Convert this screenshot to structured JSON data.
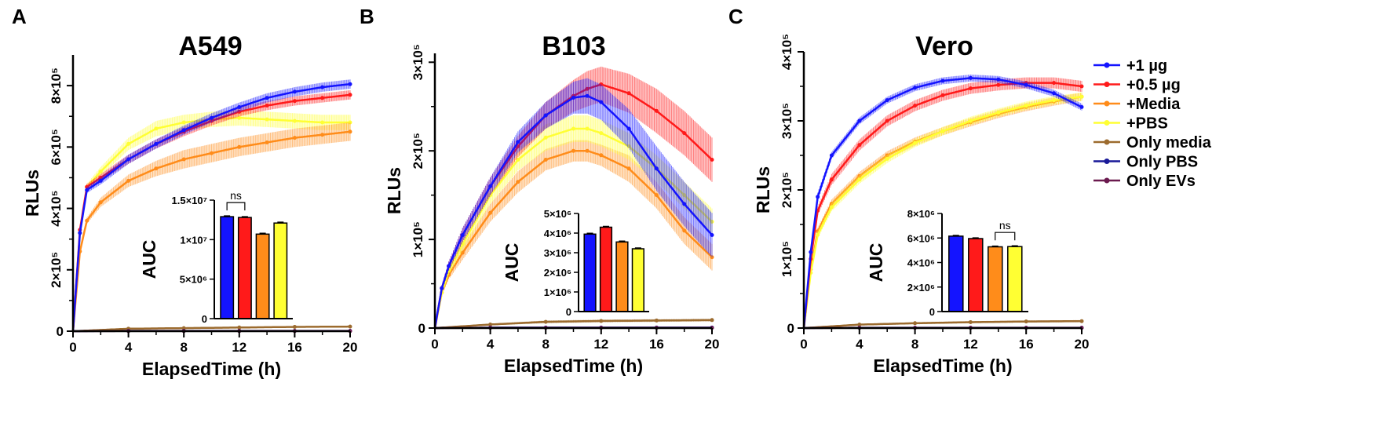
{
  "legend": {
    "position": "right",
    "items": [
      {
        "label": "+1 µg",
        "color": "#1414ff"
      },
      {
        "label": "+0.5 µg",
        "color": "#ff1a1a"
      },
      {
        "label": "+Media",
        "color": "#ff8c1a"
      },
      {
        "label": "+PBS",
        "color": "#ffff33"
      },
      {
        "label": "Only media",
        "color": "#9c6b2e"
      },
      {
        "label": "Only PBS",
        "color": "#1a1a99"
      },
      {
        "label": "Only EVs",
        "color": "#6b1a4f"
      }
    ]
  },
  "chart_data": [
    {
      "panel": "A",
      "type": "line",
      "title": "A549",
      "xlabel": "ElapsedTime (h)",
      "ylabel": "RLUs",
      "xlim": [
        0,
        20
      ],
      "ylim": [
        0,
        900000
      ],
      "xticks": [
        0,
        4,
        8,
        12,
        16,
        20
      ],
      "xtick_labels": [
        "0",
        "4",
        "8",
        "12",
        "16",
        "20"
      ],
      "yticks": [
        0,
        200000,
        400000,
        600000,
        800000
      ],
      "ytick_labels": [
        "0",
        "2×10⁵",
        "4×10⁵",
        "6×10⁵",
        "8×10⁵"
      ],
      "series": [
        {
          "name": "+PBS",
          "color": "#ffff33",
          "x": [
            0,
            0.5,
            1,
            2,
            4,
            6,
            8,
            10,
            12,
            14,
            16,
            18,
            20
          ],
          "y": [
            0,
            320000,
            470000,
            520000,
            610000,
            660000,
            680000,
            690000,
            695000,
            690000,
            685000,
            680000,
            680000
          ],
          "err": [
            0,
            5000,
            10000,
            15000,
            20000,
            25000,
            25000,
            25000,
            25000,
            25000,
            25000,
            25000,
            25000
          ]
        },
        {
          "name": "+Media",
          "color": "#ff8c1a",
          "x": [
            0,
            0.5,
            1,
            2,
            4,
            6,
            8,
            10,
            12,
            14,
            16,
            18,
            20
          ],
          "y": [
            0,
            260000,
            360000,
            420000,
            490000,
            530000,
            560000,
            580000,
            600000,
            615000,
            630000,
            640000,
            650000
          ],
          "err": [
            0,
            5000,
            10000,
            15000,
            20000,
            25000,
            30000,
            30000,
            30000,
            30000,
            30000,
            30000,
            30000
          ]
        },
        {
          "name": "+0.5 µg",
          "color": "#ff1a1a",
          "x": [
            0,
            0.5,
            1,
            2,
            4,
            6,
            8,
            10,
            12,
            14,
            16,
            18,
            20
          ],
          "y": [
            0,
            330000,
            470000,
            500000,
            560000,
            610000,
            650000,
            685000,
            715000,
            735000,
            750000,
            760000,
            770000
          ],
          "err": [
            0,
            5000,
            10000,
            12000,
            15000,
            15000,
            15000,
            15000,
            15000,
            15000,
            15000,
            15000,
            15000
          ]
        },
        {
          "name": "+1 µg",
          "color": "#1414ff",
          "x": [
            0,
            0.5,
            1,
            2,
            4,
            6,
            8,
            10,
            12,
            14,
            16,
            18,
            20
          ],
          "y": [
            0,
            320000,
            460000,
            490000,
            560000,
            610000,
            655000,
            695000,
            730000,
            760000,
            780000,
            795000,
            805000
          ],
          "err": [
            0,
            5000,
            10000,
            12000,
            15000,
            15000,
            15000,
            15000,
            15000,
            15000,
            15000,
            15000,
            15000
          ]
        },
        {
          "name": "Only media",
          "color": "#9c6b2e",
          "x": [
            0,
            4,
            8,
            12,
            16,
            20
          ],
          "y": [
            0,
            8000,
            10000,
            12000,
            14000,
            15000
          ],
          "err": [
            0,
            2000,
            2000,
            2000,
            2000,
            2000
          ]
        },
        {
          "name": "Only PBS",
          "color": "#1a1a99",
          "x": [
            0,
            4,
            8,
            12,
            16,
            20
          ],
          "y": [
            0,
            1000,
            1000,
            1000,
            1000,
            1000
          ],
          "err": [
            0,
            0,
            0,
            0,
            0,
            0
          ]
        },
        {
          "name": "Only EVs",
          "color": "#6b1a4f",
          "x": [
            0,
            4,
            8,
            12,
            16,
            20
          ],
          "y": [
            0,
            500,
            500,
            500,
            500,
            500
          ],
          "err": [
            0,
            0,
            0,
            0,
            0,
            0
          ]
        }
      ],
      "inset": {
        "type": "bar",
        "ylabel": "AUC",
        "ylim": [
          0,
          15000000
        ],
        "yticks": [
          0,
          5000000,
          10000000,
          15000000
        ],
        "ytick_labels": [
          "0",
          "5×10⁶",
          "1×10⁷",
          "1.5×10⁷"
        ],
        "categories": [
          "+1 µg",
          "+0.5 µg",
          "+Media",
          "+PBS"
        ],
        "values": [
          12900000,
          12800000,
          10700000,
          12100000
        ],
        "errors": [
          100000,
          100000,
          100000,
          100000
        ],
        "colors": [
          "#1414ff",
          "#ff1a1a",
          "#ff8c1a",
          "#ffff33"
        ],
        "significance": {
          "between": [
            0,
            1
          ],
          "label": "ns"
        }
      }
    },
    {
      "panel": "B",
      "type": "line",
      "title": "B103",
      "xlabel": "ElapsedTime (h)",
      "ylabel": "RLUs",
      "xlim": [
        0,
        20
      ],
      "ylim": [
        0,
        310000
      ],
      "xticks": [
        0,
        4,
        8,
        12,
        16,
        20
      ],
      "xtick_labels": [
        "0",
        "4",
        "8",
        "12",
        "16",
        "20"
      ],
      "yticks": [
        0,
        100000,
        200000,
        300000
      ],
      "ytick_labels": [
        "0",
        "1×10⁵",
        "2×10⁵",
        "3×10⁵"
      ],
      "series": [
        {
          "name": "+Media",
          "color": "#ff8c1a",
          "x": [
            0,
            0.5,
            1,
            2,
            4,
            6,
            8,
            10,
            11,
            12,
            14,
            16,
            18,
            20
          ],
          "y": [
            0,
            40000,
            60000,
            85000,
            130000,
            165000,
            190000,
            200000,
            200000,
            195000,
            180000,
            150000,
            110000,
            80000
          ],
          "err": [
            0,
            3000,
            5000,
            8000,
            10000,
            12000,
            12000,
            12000,
            12000,
            12000,
            15000,
            15000,
            15000,
            15000
          ]
        },
        {
          "name": "+PBS",
          "color": "#ffff33",
          "x": [
            0,
            0.5,
            1,
            2,
            4,
            6,
            8,
            10,
            11,
            12,
            14,
            16,
            18,
            20
          ],
          "y": [
            0,
            40000,
            65000,
            95000,
            150000,
            190000,
            215000,
            225000,
            225000,
            220000,
            205000,
            180000,
            150000,
            120000
          ],
          "err": [
            0,
            3000,
            5000,
            8000,
            10000,
            12000,
            15000,
            15000,
            15000,
            15000,
            15000,
            15000,
            15000,
            15000
          ]
        },
        {
          "name": "+0.5 µg",
          "color": "#ff1a1a",
          "x": [
            0,
            0.5,
            1,
            2,
            4,
            6,
            8,
            10,
            11,
            12,
            14,
            16,
            18,
            20
          ],
          "y": [
            0,
            45000,
            70000,
            105000,
            160000,
            205000,
            240000,
            262000,
            270000,
            275000,
            265000,
            245000,
            220000,
            190000
          ],
          "err": [
            0,
            3000,
            5000,
            8000,
            10000,
            12000,
            15000,
            18000,
            20000,
            20000,
            22000,
            25000,
            25000,
            25000
          ]
        },
        {
          "name": "+1 µg",
          "color": "#1414ff",
          "x": [
            0,
            0.5,
            1,
            2,
            4,
            6,
            8,
            10,
            11,
            12,
            14,
            16,
            18,
            20
          ],
          "y": [
            0,
            45000,
            70000,
            105000,
            160000,
            210000,
            240000,
            260000,
            262000,
            255000,
            225000,
            180000,
            140000,
            105000
          ],
          "err": [
            0,
            3000,
            5000,
            8000,
            10000,
            12000,
            15000,
            18000,
            20000,
            20000,
            22000,
            25000,
            25000,
            25000
          ]
        },
        {
          "name": "Only media",
          "color": "#9c6b2e",
          "x": [
            0,
            4,
            8,
            12,
            16,
            20
          ],
          "y": [
            0,
            4000,
            7000,
            8000,
            8500,
            9000
          ],
          "err": [
            0,
            1000,
            1500,
            1500,
            1500,
            1500
          ]
        },
        {
          "name": "Only PBS",
          "color": "#1a1a99",
          "x": [
            0,
            4,
            8,
            12,
            16,
            20
          ],
          "y": [
            0,
            500,
            500,
            500,
            500,
            500
          ],
          "err": [
            0,
            0,
            0,
            0,
            0,
            0
          ]
        },
        {
          "name": "Only EVs",
          "color": "#6b1a4f",
          "x": [
            0,
            4,
            8,
            12,
            16,
            20
          ],
          "y": [
            0,
            300,
            300,
            300,
            300,
            300
          ],
          "err": [
            0,
            0,
            0,
            0,
            0,
            0
          ]
        }
      ],
      "inset": {
        "type": "bar",
        "ylabel": "AUC",
        "ylim": [
          0,
          5000000
        ],
        "yticks": [
          0,
          1000000,
          2000000,
          3000000,
          4000000,
          5000000
        ],
        "ytick_labels": [
          "0",
          "1×10⁶",
          "2×10⁶",
          "3×10⁶",
          "4×10⁶",
          "5×10⁶"
        ],
        "categories": [
          "+1 µg",
          "+0.5 µg",
          "+Media",
          "+PBS"
        ],
        "values": [
          3950000,
          4300000,
          3550000,
          3200000
        ],
        "errors": [
          40000,
          40000,
          40000,
          40000
        ],
        "colors": [
          "#1414ff",
          "#ff1a1a",
          "#ff8c1a",
          "#ffff33"
        ]
      }
    },
    {
      "panel": "C",
      "type": "line",
      "title": "Vero",
      "xlabel": "ElapsedTime (h)",
      "ylabel": "RLUs",
      "xlim": [
        0,
        20
      ],
      "ylim": [
        0,
        400000
      ],
      "xticks": [
        0,
        4,
        8,
        12,
        16,
        20
      ],
      "xtick_labels": [
        "0",
        "4",
        "8",
        "12",
        "16",
        "20"
      ],
      "yticks": [
        0,
        100000,
        200000,
        300000,
        400000
      ],
      "ytick_labels": [
        "0",
        "1×10⁵",
        "2×10⁵",
        "3×10⁵",
        "4×10⁵"
      ],
      "series": [
        {
          "name": "+Media",
          "color": "#ff8c1a",
          "x": [
            0,
            0.5,
            1,
            2,
            4,
            6,
            8,
            10,
            12,
            14,
            16,
            18,
            20
          ],
          "y": [
            0,
            85000,
            140000,
            180000,
            220000,
            250000,
            270000,
            285000,
            298000,
            310000,
            320000,
            328000,
            335000
          ],
          "err": [
            0,
            4000,
            5000,
            6000,
            6000,
            6000,
            6000,
            6000,
            6000,
            6000,
            6000,
            6000,
            6000
          ]
        },
        {
          "name": "+PBS",
          "color": "#ffff33",
          "x": [
            0,
            0.5,
            1,
            2,
            4,
            6,
            8,
            10,
            12,
            14,
            16,
            18,
            20
          ],
          "y": [
            0,
            80000,
            135000,
            175000,
            215000,
            245000,
            268000,
            285000,
            300000,
            312000,
            322000,
            330000,
            335000
          ],
          "err": [
            0,
            4000,
            5000,
            6000,
            6000,
            6000,
            6000,
            6000,
            6000,
            6000,
            6000,
            6000,
            6000
          ]
        },
        {
          "name": "+0.5 µg",
          "color": "#ff1a1a",
          "x": [
            0,
            0.5,
            1,
            2,
            4,
            6,
            8,
            10,
            12,
            14,
            16,
            18,
            20
          ],
          "y": [
            0,
            100000,
            170000,
            215000,
            265000,
            300000,
            322000,
            337000,
            347000,
            352000,
            355000,
            355000,
            350000
          ],
          "err": [
            0,
            4000,
            6000,
            8000,
            8000,
            8000,
            8000,
            8000,
            8000,
            8000,
            8000,
            8000,
            8000
          ]
        },
        {
          "name": "+1 µg",
          "color": "#1414ff",
          "x": [
            0,
            0.5,
            1,
            2,
            4,
            6,
            8,
            10,
            12,
            14,
            16,
            18,
            20
          ],
          "y": [
            0,
            110000,
            190000,
            250000,
            300000,
            330000,
            348000,
            358000,
            362000,
            360000,
            352000,
            340000,
            320000
          ],
          "err": [
            0,
            4000,
            6000,
            5000,
            5000,
            5000,
            5000,
            5000,
            5000,
            5000,
            5000,
            5000,
            5000
          ]
        },
        {
          "name": "Only media",
          "color": "#9c6b2e",
          "x": [
            0,
            4,
            8,
            12,
            16,
            20
          ],
          "y": [
            0,
            5000,
            7000,
            8500,
            9500,
            10000
          ],
          "err": [
            0,
            1000,
            1500,
            1500,
            1500,
            1500
          ]
        },
        {
          "name": "Only PBS",
          "color": "#1a1a99",
          "x": [
            0,
            4,
            8,
            12,
            16,
            20
          ],
          "y": [
            0,
            500,
            500,
            500,
            500,
            500
          ],
          "err": [
            0,
            0,
            0,
            0,
            0,
            0
          ]
        },
        {
          "name": "Only EVs",
          "color": "#6b1a4f",
          "x": [
            0,
            4,
            8,
            12,
            16,
            20
          ],
          "y": [
            0,
            300,
            300,
            300,
            300,
            300
          ],
          "err": [
            0,
            0,
            0,
            0,
            0,
            0
          ]
        }
      ],
      "inset": {
        "type": "bar",
        "ylabel": "AUC",
        "ylim": [
          0,
          8000000
        ],
        "yticks": [
          0,
          2000000,
          4000000,
          6000000,
          8000000
        ],
        "ytick_labels": [
          "0",
          "2×10⁶",
          "4×10⁶",
          "6×10⁶",
          "8×10⁶"
        ],
        "categories": [
          "+1 µg",
          "+0.5 µg",
          "+Media",
          "+PBS"
        ],
        "values": [
          6150000,
          5950000,
          5280000,
          5300000
        ],
        "errors": [
          60000,
          60000,
          60000,
          60000
        ],
        "colors": [
          "#1414ff",
          "#ff1a1a",
          "#ff8c1a",
          "#ffff33"
        ],
        "significance": {
          "between": [
            2,
            3
          ],
          "label": "ns"
        }
      }
    }
  ]
}
